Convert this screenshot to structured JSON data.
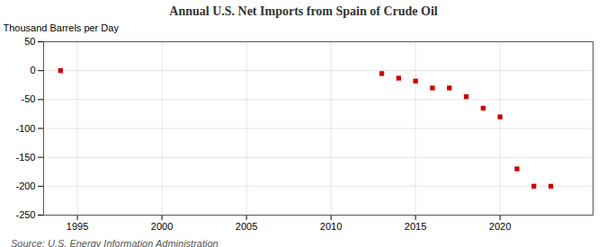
{
  "chart_data": {
    "type": "scatter",
    "title": "Annual U.S. Net Imports from Spain of Crude Oil",
    "ylabel": "Thousand Barrels per Day",
    "annotations": [
      "Source: U.S. Energy Information Administration"
    ],
    "x": [
      1994,
      2013,
      2014,
      2015,
      2016,
      2017,
      2018,
      2019,
      2020,
      2021,
      2022,
      2023
    ],
    "values": [
      0,
      -5,
      -13,
      -18,
      -30,
      -30,
      -45,
      -65,
      -80,
      -170,
      -200,
      -200
    ],
    "color": "#cc0000",
    "marker": "square",
    "xlim": [
      1993.0,
      2025.5
    ],
    "ylim": [
      -250,
      50
    ],
    "xticks": [
      1995,
      2000,
      2005,
      2010,
      2015,
      2020
    ],
    "yticks": [
      50,
      0,
      -50,
      -100,
      -150,
      -200,
      -250
    ],
    "grid": true
  }
}
